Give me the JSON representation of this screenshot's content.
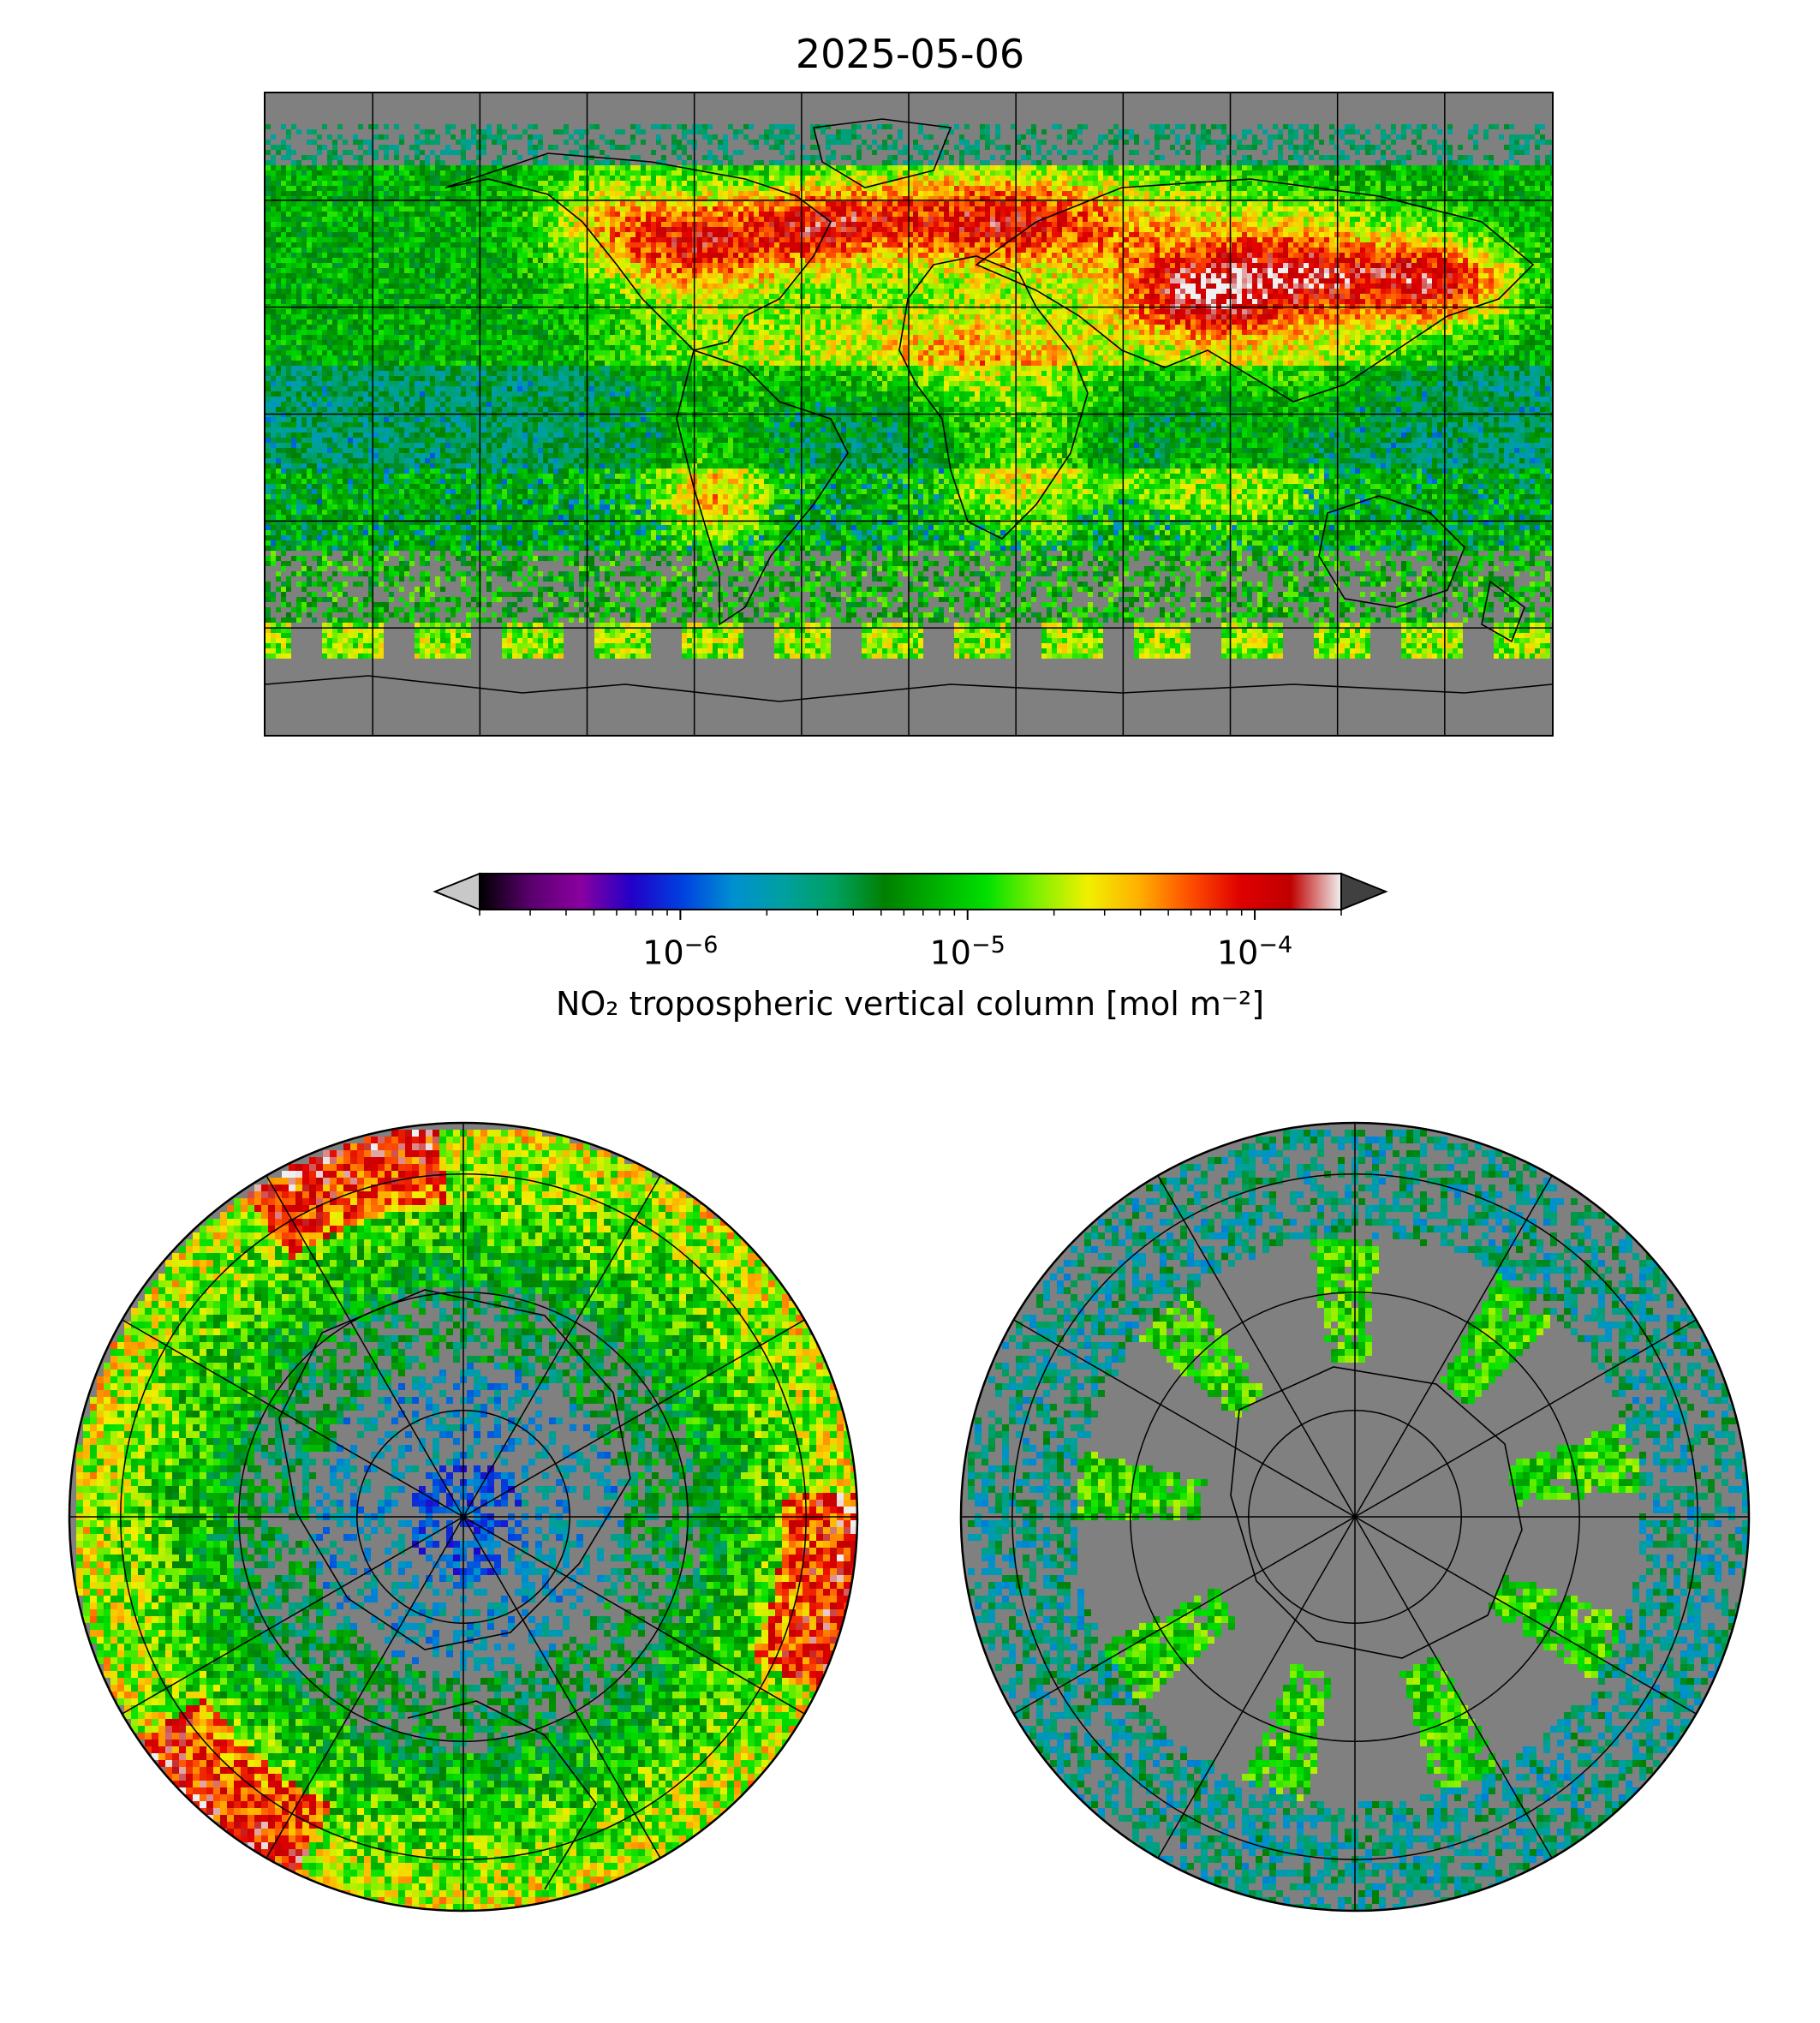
{
  "title": "2025-05-06",
  "colorbar": {
    "label": "NO₂ tropospheric vertical column [mol m⁻²]",
    "scale": "log",
    "range": [
      2e-07,
      0.0002
    ],
    "ticks": [
      {
        "value": 1e-06,
        "base": "10",
        "exp": "−6"
      },
      {
        "value": 1e-05,
        "base": "10",
        "exp": "−5"
      },
      {
        "value": 0.0001,
        "base": "10",
        "exp": "−4"
      }
    ],
    "colors": [
      "#000000",
      "#5a006e",
      "#8a00a0",
      "#2200c8",
      "#0040e0",
      "#0090d0",
      "#00a0a0",
      "#00a060",
      "#008000",
      "#00b000",
      "#00e000",
      "#80f000",
      "#f0f000",
      "#ffb000",
      "#ff5000",
      "#e00000",
      "#c00000",
      "#f0f0f0"
    ],
    "under_color": "#c8c8c8",
    "over_color": "#404040"
  },
  "colors": {
    "missing": "#808080",
    "coastline": "#000000"
  },
  "maps": {
    "global": {
      "projection": "equirectangular",
      "gridlines": true
    },
    "north": {
      "projection": "north polar stereographic",
      "gridlines": true
    },
    "south": {
      "projection": "south polar stereographic",
      "gridlines": true
    }
  }
}
